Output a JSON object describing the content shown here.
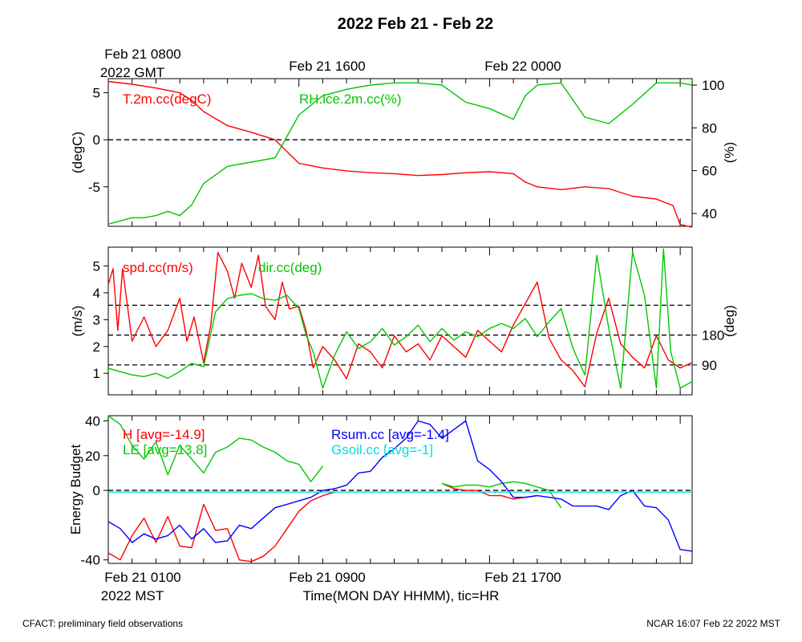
{
  "title": "2022 Feb 21 - Feb 22",
  "top_time_labels": {
    "t0": "Feb 21 0800",
    "t0_sub": "2022 GMT",
    "t1": "Feb 21 1600",
    "t2": "Feb 22 0000"
  },
  "bottom_time_labels": {
    "t0": "Feb 21 0100",
    "t0_sub": "2022 MST",
    "t1": "Feb 21 0900",
    "t2": "Feb 21 1700"
  },
  "xlabel": "Time(MON DAY HHMM), tic=HR",
  "footer_left": "CFACT: preliminary field observations",
  "footer_right": "NCAR 16:07 Feb 22 2022 MST",
  "colors": {
    "red": "#ff0000",
    "green": "#00c800",
    "blue": "#0000ff",
    "cyan": "#00e0e0"
  },
  "chart_data": [
    {
      "type": "line",
      "name": "temperature-humidity",
      "x_range_hours": [
        0,
        24.5
      ],
      "ylabel": "(degC)",
      "ylim": [
        -9.2,
        6.5
      ],
      "yticks": [
        5,
        0,
        -5
      ],
      "ytick_labels": [
        "5",
        "0",
        "-5"
      ],
      "y2label": "(%)",
      "y2lim": [
        34,
        103
      ],
      "y2ticks": [
        100,
        80,
        60,
        40
      ],
      "y2tick_labels": [
        "100",
        "80",
        "60",
        "40"
      ],
      "hlines": [
        0
      ],
      "series": [
        {
          "name": "T.2m.cc(degC)",
          "color": "#ff0000",
          "axis": "left",
          "x": [
            0,
            1,
            2,
            3,
            3.5,
            4,
            5,
            6,
            7,
            8,
            9,
            10,
            11,
            12,
            13,
            14,
            15,
            16,
            17,
            17.5,
            18,
            19,
            20,
            21,
            22,
            23,
            23.7,
            24,
            24.5
          ],
          "y": [
            6.2,
            5.9,
            5.5,
            5.0,
            4.2,
            3.0,
            1.5,
            0.8,
            0.0,
            -2.5,
            -3.0,
            -3.3,
            -3.5,
            -3.6,
            -3.8,
            -3.7,
            -3.5,
            -3.4,
            -3.6,
            -4.5,
            -5.0,
            -5.3,
            -5.0,
            -5.2,
            -6.0,
            -6.3,
            -7.0,
            -9.0,
            -9.3
          ]
        },
        {
          "name": "RH.ice.2m.cc(%)",
          "color": "#00c800",
          "axis": "right",
          "x": [
            0,
            1,
            1.5,
            2,
            2.5,
            3,
            3.5,
            4,
            5,
            6,
            7,
            7.5,
            8,
            9,
            10,
            11,
            12,
            13,
            14,
            15,
            16,
            17,
            17.5,
            18,
            19,
            20,
            21,
            22,
            23,
            24,
            24.5
          ],
          "y": [
            35,
            38,
            38,
            39,
            41,
            39,
            44,
            54,
            62,
            64,
            66,
            76,
            86,
            95,
            98,
            100,
            101,
            101,
            100,
            92,
            89,
            84,
            95,
            100,
            101,
            85,
            82,
            91,
            101,
            101,
            100
          ]
        }
      ]
    },
    {
      "type": "line",
      "name": "wind",
      "x_range_hours": [
        0,
        24.5
      ],
      "ylabel": "(m/s)",
      "ylim": [
        0.2,
        5.7
      ],
      "yticks": [
        5,
        4,
        3,
        2,
        1
      ],
      "ytick_labels": [
        "5",
        "4",
        "3",
        "2",
        "1"
      ],
      "y2label": "(deg)",
      "y2lim": [
        0,
        445
      ],
      "y2ticks": [
        180,
        90
      ],
      "y2tick_labels": [
        "180",
        "90"
      ],
      "hlines_right": [
        90,
        180,
        270
      ],
      "series": [
        {
          "name": "spd.cc(m/s)",
          "color": "#ff0000",
          "axis": "left",
          "x": [
            0,
            0.2,
            0.4,
            0.6,
            1,
            1.5,
            2,
            2.5,
            3,
            3.3,
            3.6,
            4,
            4.3,
            4.6,
            5,
            5.3,
            5.6,
            6,
            6.3,
            6.6,
            7,
            7.3,
            7.6,
            8,
            8.3,
            8.6,
            9,
            9.5,
            10,
            10.5,
            11,
            11.5,
            12,
            12.5,
            13,
            13.5,
            14,
            14.5,
            15,
            15.5,
            16,
            16.5,
            17,
            17.5,
            18,
            18.5,
            19,
            19.5,
            20,
            20.5,
            21,
            21.5,
            22,
            22.5,
            23,
            23.5,
            24,
            24.5
          ],
          "y": [
            4.3,
            4.9,
            2.6,
            4.9,
            2.2,
            3.1,
            2.0,
            2.6,
            3.8,
            2.2,
            3.1,
            1.4,
            2.8,
            5.5,
            4.8,
            3.8,
            5.1,
            4.2,
            5.4,
            3.5,
            3.0,
            4.4,
            3.4,
            3.5,
            2.6,
            1.2,
            2.0,
            1.5,
            0.8,
            2.1,
            1.8,
            1.2,
            2.4,
            1.8,
            2.1,
            1.5,
            2.4,
            2.0,
            1.6,
            2.6,
            2.2,
            1.8,
            2.8,
            3.6,
            4.4,
            2.3,
            1.5,
            1.1,
            0.5,
            2.5,
            3.8,
            2.1,
            1.6,
            1.2,
            2.4,
            1.5,
            1.2,
            1.4
          ]
        },
        {
          "name": "dir.cc(deg)",
          "color": "#00c800",
          "axis": "right",
          "x": [
            0,
            0.5,
            1,
            1.5,
            2,
            2.5,
            3,
            3.5,
            4,
            4.5,
            5,
            5.5,
            6,
            6.5,
            7,
            7.5,
            8,
            8.3,
            8.6,
            9,
            9.5,
            10,
            10.5,
            11,
            11.5,
            12,
            12.5,
            13,
            13.5,
            14,
            14.5,
            15,
            15.5,
            16,
            16.5,
            17,
            17.5,
            18,
            18.5,
            19,
            19.5,
            20,
            20.5,
            21,
            21.5,
            22,
            22.5,
            23,
            23.3,
            23.6,
            24,
            24.5
          ],
          "y": [
            80,
            70,
            60,
            55,
            65,
            50,
            70,
            95,
            85,
            250,
            290,
            300,
            305,
            290,
            285,
            300,
            260,
            180,
            130,
            20,
            120,
            190,
            140,
            160,
            200,
            150,
            175,
            210,
            160,
            200,
            165,
            190,
            175,
            200,
            215,
            200,
            230,
            175,
            220,
            260,
            140,
            60,
            420,
            200,
            20,
            430,
            300,
            20,
            440,
            130,
            20,
            40
          ]
        }
      ]
    },
    {
      "type": "line",
      "name": "energy-budget",
      "x_range_hours": [
        0,
        24.5
      ],
      "ylabel": "Energy Budget",
      "ylim": [
        -42,
        43
      ],
      "yticks": [
        40,
        20,
        0,
        -40
      ],
      "ytick_labels": [
        "40",
        "20",
        "0",
        "-40"
      ],
      "hlines": [
        0
      ],
      "series": [
        {
          "name": "H",
          "label": "H [avg=-14.9]",
          "color": "#ff0000",
          "x": [
            0,
            0.5,
            1,
            1.5,
            2,
            2.5,
            3,
            3.5,
            4,
            4.5,
            5,
            5.5,
            6,
            6.5,
            7,
            7.5,
            8,
            8.5,
            9,
            9.5,
            null,
            14,
            14.5,
            15,
            15.5,
            16,
            16.5,
            17,
            17.5,
            18
          ],
          "y": [
            -36,
            -40,
            -26,
            -16,
            -30,
            -15,
            -32,
            -33,
            -8,
            -23,
            -22,
            -40,
            -41,
            -38,
            -32,
            -22,
            -12,
            -6,
            -3,
            -1,
            null,
            4,
            1,
            0,
            0,
            -3,
            -3,
            -5,
            -4,
            -3
          ]
        },
        {
          "name": "LE",
          "label": "LE [avg=13.8]",
          "color": "#00c800",
          "x": [
            0,
            0.5,
            1,
            1.5,
            2,
            2.5,
            3,
            3.5,
            4,
            4.5,
            5,
            5.5,
            6,
            6.5,
            7,
            7.5,
            8,
            8.5,
            9,
            null,
            14,
            14.5,
            15,
            15.5,
            16,
            16.5,
            17,
            17.5,
            18,
            18.5,
            19
          ],
          "y": [
            43,
            38,
            26,
            18,
            28,
            9,
            26,
            18,
            10,
            22,
            25,
            30,
            29,
            25,
            22,
            17,
            15,
            5,
            14,
            null,
            4,
            2,
            3,
            3,
            2,
            4,
            5,
            4,
            2,
            0,
            -10
          ]
        },
        {
          "name": "Rsum.cc",
          "label": "Rsum.cc [avg=-1.4]",
          "color": "#0000ff",
          "x": [
            0,
            0.5,
            1,
            1.5,
            2,
            2.5,
            3,
            3.5,
            4,
            4.5,
            5,
            5.5,
            6,
            6.5,
            7,
            7.5,
            8,
            8.5,
            9,
            9.5,
            10,
            10.5,
            11,
            11.5,
            12,
            12.5,
            13,
            13.5,
            14,
            14.5,
            15,
            15.5,
            16,
            16.5,
            17,
            17.5,
            18,
            18.5,
            19,
            19.5,
            20,
            20.5,
            21,
            21.5,
            22,
            22.5,
            23,
            23.5,
            24,
            24.5
          ],
          "y": [
            -18,
            -22,
            -30,
            -25,
            -28,
            -26,
            -20,
            -28,
            -22,
            -30,
            -29,
            -20,
            -22,
            -16,
            -10,
            -8,
            -6,
            -4,
            0,
            1,
            3,
            10,
            11,
            19,
            24,
            30,
            40,
            38,
            30,
            35,
            40,
            17,
            12,
            5,
            -4,
            -4,
            -3,
            -4,
            -5,
            -9,
            -9,
            -9,
            -11,
            -3,
            0,
            -9,
            -10,
            -17,
            -34,
            -35
          ]
        },
        {
          "name": "Gsoil.cc",
          "label": "Gsoil.cc [avg=-1]",
          "color": "#00e0e0",
          "x": [
            0,
            24.5
          ],
          "y": [
            -1,
            -1
          ]
        }
      ]
    }
  ]
}
